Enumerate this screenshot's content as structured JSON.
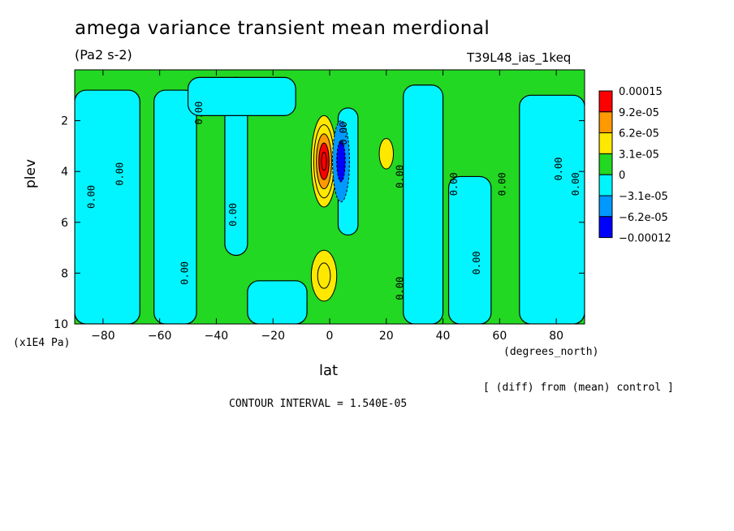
{
  "chart_data": {
    "type": "heatmap",
    "title": "amega variance transient mean merdional",
    "units": "(Pa2 s-2)",
    "run_label": "T39L48_ias_1keq",
    "xlabel": "lat",
    "x_units": "(degrees_north)",
    "ylabel": "plev",
    "y_units": "(x1E4 Pa)",
    "xlim": [
      -90,
      90
    ],
    "ylim": [
      0,
      10
    ],
    "y_inverted": true,
    "x_ticks": [
      -80,
      -60,
      -40,
      -20,
      0,
      20,
      40,
      60,
      80
    ],
    "y_ticks": [
      2,
      4,
      6,
      8,
      10
    ],
    "contour_labels": [
      {
        "text": "0.00",
        "lat": -83,
        "plev": 5.0
      },
      {
        "text": "0.00",
        "lat": -73,
        "plev": 4.1
      },
      {
        "text": "0.00",
        "lat": -50,
        "plev": 8.0
      },
      {
        "text": "0.00",
        "lat": -45,
        "plev": 1.7
      },
      {
        "text": "0.00",
        "lat": -33,
        "plev": 5.7
      },
      {
        "text": "0.00",
        "lat": 6,
        "plev": 2.5
      },
      {
        "text": "0.00",
        "lat": 26,
        "plev": 4.2
      },
      {
        "text": "0.00",
        "lat": 26,
        "plev": 8.6
      },
      {
        "text": "0.00",
        "lat": 45,
        "plev": 4.5
      },
      {
        "text": "0.00",
        "lat": 53,
        "plev": 7.6
      },
      {
        "text": "0.00",
        "lat": 62,
        "plev": 4.5
      },
      {
        "text": "0.00",
        "lat": 82,
        "plev": 3.9
      },
      {
        "text": "0.00",
        "lat": 88,
        "plev": 4.5
      }
    ],
    "levels": [
      {
        "label": "0.00015",
        "color": "#ff0000"
      },
      {
        "label": "9.2e-05",
        "color": "#ff9900"
      },
      {
        "label": "6.2e-05",
        "color": "#ffe800"
      },
      {
        "label": "3.1e-05",
        "color": "#22d822"
      },
      {
        "label": "0",
        "color": "#00f5ff"
      },
      {
        "label": "-3.1e-05",
        "color": "#0099ff"
      },
      {
        "label": "-6.2e-05",
        "color": "#0000ff"
      },
      {
        "label": "-0.00012",
        "color": ""
      }
    ],
    "green_color": "#22d822",
    "cyan_color": "#00f5ff",
    "cyan_regions": [
      {
        "lat_min": -90,
        "lat_max": -67,
        "plev_min": 0.8,
        "plev_max": 10
      },
      {
        "lat_min": -62,
        "lat_max": -47,
        "plev_min": 0.8,
        "plev_max": 10
      },
      {
        "lat_min": -37,
        "lat_max": -29,
        "plev_min": 0.3,
        "plev_max": 7.3
      },
      {
        "lat_min": -50,
        "lat_max": -12,
        "plev_min": 0.3,
        "plev_max": 1.8
      },
      {
        "lat_min": -29,
        "lat_max": -8,
        "plev_min": 8.3,
        "plev_max": 10
      },
      {
        "lat_min": 3,
        "lat_max": 10,
        "plev_min": 1.5,
        "plev_max": 6.5
      },
      {
        "lat_min": 26,
        "lat_max": 40,
        "plev_min": 0.6,
        "plev_max": 10
      },
      {
        "lat_min": 42,
        "lat_max": 57,
        "plev_min": 4.2,
        "plev_max": 10
      },
      {
        "lat_min": 67,
        "lat_max": 90,
        "plev_min": 1.0,
        "plev_max": 10
      }
    ],
    "positive_centers": [
      {
        "lat": -2,
        "plev": 3.6,
        "peak": 0.00015,
        "lat_width": 4.5,
        "plev_width": 1.8
      },
      {
        "lat": -2,
        "plev": 8.1,
        "peak": 5.5e-05,
        "lat_width": 4.5,
        "plev_width": 1.0
      },
      {
        "lat": 20,
        "plev": 3.3,
        "peak": 3.5e-05,
        "lat_width": 2.5,
        "plev_width": 0.6
      }
    ],
    "negative_centers": [
      {
        "lat": 4,
        "plev": 3.6,
        "peak": -7e-05,
        "lat_width": 3.0,
        "plev_width": 1.6
      }
    ]
  },
  "annotation": "[ (diff) from (mean) control ]",
  "contour_interval": "CONTOUR INTERVAL = 1.540E-05"
}
